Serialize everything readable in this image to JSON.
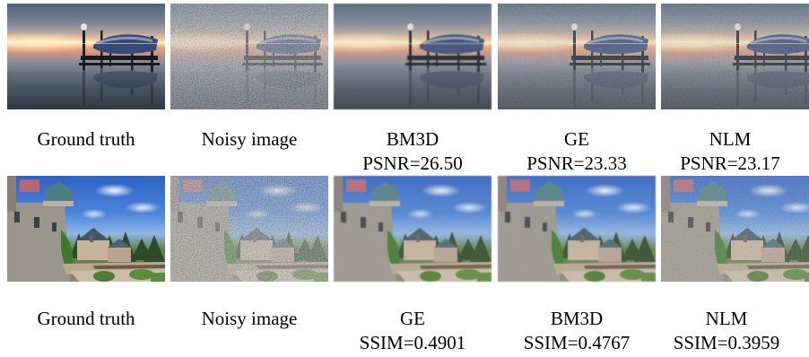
{
  "rows": [
    {
      "scene": "sunset-dock",
      "captions": [
        {
          "title": "Ground truth",
          "metric": ""
        },
        {
          "title": "Noisy image",
          "metric": ""
        },
        {
          "title": "BM3D",
          "metric": "PSNR=26.50"
        },
        {
          "title": "GE",
          "metric": "PSNR=23.33"
        },
        {
          "title": "NLM",
          "metric": "PSNR=23.17"
        }
      ]
    },
    {
      "scene": "castle",
      "captions": [
        {
          "title": "Ground truth",
          "metric": ""
        },
        {
          "title": "Noisy image",
          "metric": ""
        },
        {
          "title": "GE",
          "metric": "SSIM=0.4901"
        },
        {
          "title": "BM3D",
          "metric": "SSIM=0.4767"
        },
        {
          "title": "NLM",
          "metric": "SSIM=0.3959"
        }
      ]
    }
  ]
}
